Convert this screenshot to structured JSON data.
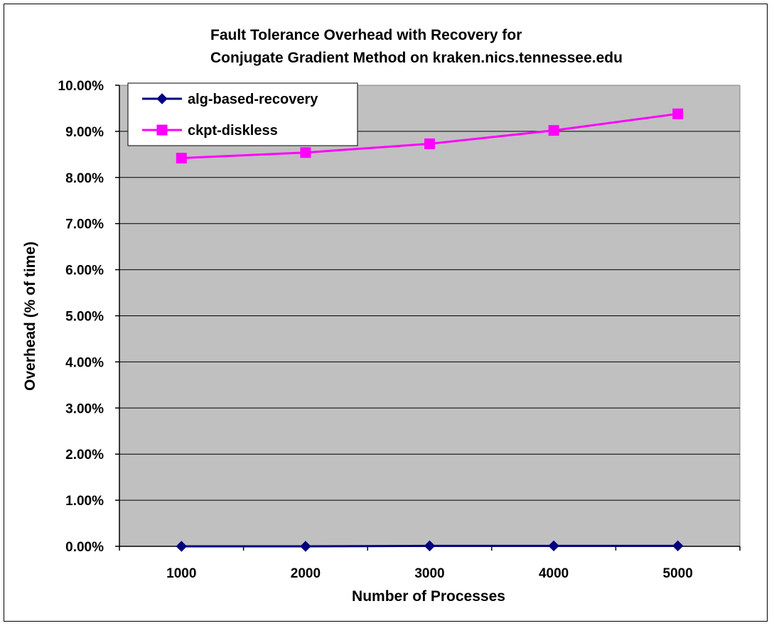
{
  "chart_data": {
    "type": "line",
    "title": [
      "Fault Tolerance Overhead with Recovery for",
      "Conjugate Gradient Method on kraken.nics.tennessee.edu"
    ],
    "xlabel": "Number of Processes",
    "ylabel": "Overhead (% of time)",
    "categories": [
      "1000",
      "2000",
      "3000",
      "4000",
      "5000"
    ],
    "ylim": [
      0,
      10
    ],
    "yticks": [
      "0.00%",
      "1.00%",
      "2.00%",
      "3.00%",
      "4.00%",
      "5.00%",
      "6.00%",
      "7.00%",
      "8.00%",
      "9.00%",
      "10.00%"
    ],
    "grid": true,
    "legend_position": "top-left",
    "plot_background": "#c0c0c0",
    "series": [
      {
        "name": "alg-based-recovery",
        "color": "#000080",
        "marker": "diamond",
        "values": [
          0.0,
          0.0,
          0.01,
          0.01,
          0.01
        ]
      },
      {
        "name": "ckpt-diskless",
        "color": "#ff00ff",
        "marker": "square",
        "values": [
          8.42,
          8.54,
          8.73,
          9.02,
          9.38
        ]
      }
    ]
  }
}
